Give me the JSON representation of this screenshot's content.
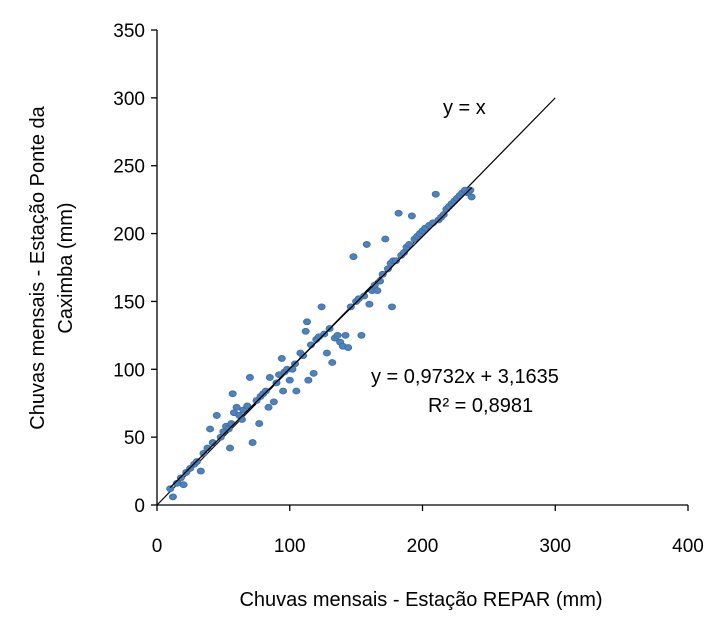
{
  "chart_data": {
    "type": "scatter",
    "title": "",
    "xlabel": "Chuvas mensais - Estação REPAR (mm)",
    "ylabel_line1": "Chuvas mensais - Estação Ponte da",
    "ylabel_line2": "Caximba (mm)",
    "xlim": [
      0,
      400
    ],
    "ylim": [
      0,
      350
    ],
    "x_ticks": [
      0,
      100,
      200,
      300,
      400
    ],
    "y_ticks": [
      0,
      50,
      100,
      150,
      200,
      250,
      300,
      350
    ],
    "x_tick_labels": [
      "0",
      "100",
      "200",
      "300",
      "400"
    ],
    "y_tick_labels": [
      "0",
      "50",
      "100",
      "150",
      "200",
      "250",
      "300",
      "350"
    ],
    "grid": false,
    "colors": {
      "points": "#4f81bd",
      "point_stroke": "#3a6ea5",
      "trendline": "#000000",
      "identity_line": "#000000",
      "axes": "#000000"
    },
    "identity_line": {
      "label": "y = x",
      "x": [
        0,
        300
      ],
      "y": [
        0,
        300
      ]
    },
    "trendline": {
      "equation": "y = 0,9732x + 3,1635",
      "r2": "R² = 0,8981",
      "slope": 0.9732,
      "intercept": 3.1635
    },
    "points": [
      [
        10,
        12
      ],
      [
        12,
        6
      ],
      [
        15,
        16
      ],
      [
        18,
        20
      ],
      [
        20,
        15
      ],
      [
        22,
        24
      ],
      [
        25,
        27
      ],
      [
        28,
        30
      ],
      [
        30,
        32
      ],
      [
        33,
        25
      ],
      [
        35,
        38
      ],
      [
        38,
        42
      ],
      [
        40,
        56
      ],
      [
        42,
        46
      ],
      [
        45,
        66
      ],
      [
        48,
        50
      ],
      [
        50,
        54
      ],
      [
        52,
        58
      ],
      [
        54,
        56
      ],
      [
        55,
        42
      ],
      [
        56,
        60
      ],
      [
        57,
        82
      ],
      [
        58,
        68
      ],
      [
        60,
        72
      ],
      [
        62,
        66
      ],
      [
        64,
        63
      ],
      [
        65,
        70
      ],
      [
        68,
        73
      ],
      [
        70,
        94
      ],
      [
        72,
        46
      ],
      [
        75,
        77
      ],
      [
        77,
        60
      ],
      [
        78,
        80
      ],
      [
        80,
        82
      ],
      [
        82,
        84
      ],
      [
        84,
        72
      ],
      [
        85,
        94
      ],
      [
        88,
        76
      ],
      [
        90,
        90
      ],
      [
        92,
        96
      ],
      [
        94,
        108
      ],
      [
        95,
        84
      ],
      [
        96,
        98
      ],
      [
        98,
        100
      ],
      [
        100,
        92
      ],
      [
        102,
        100
      ],
      [
        104,
        104
      ],
      [
        105,
        84
      ],
      [
        108,
        112
      ],
      [
        110,
        110
      ],
      [
        112,
        128
      ],
      [
        113,
        135
      ],
      [
        114,
        92
      ],
      [
        116,
        118
      ],
      [
        118,
        97
      ],
      [
        120,
        122
      ],
      [
        122,
        124
      ],
      [
        124,
        146
      ],
      [
        126,
        126
      ],
      [
        128,
        112
      ],
      [
        130,
        130
      ],
      [
        132,
        105
      ],
      [
        134,
        123
      ],
      [
        136,
        125
      ],
      [
        138,
        120
      ],
      [
        140,
        117
      ],
      [
        142,
        125
      ],
      [
        144,
        116
      ],
      [
        146,
        146
      ],
      [
        148,
        183
      ],
      [
        150,
        150
      ],
      [
        152,
        152
      ],
      [
        154,
        125
      ],
      [
        156,
        154
      ],
      [
        158,
        192
      ],
      [
        160,
        148
      ],
      [
        162,
        158
      ],
      [
        164,
        162
      ],
      [
        166,
        158
      ],
      [
        168,
        165
      ],
      [
        170,
        170
      ],
      [
        172,
        196
      ],
      [
        174,
        174
      ],
      [
        176,
        178
      ],
      [
        177,
        146
      ],
      [
        178,
        180
      ],
      [
        180,
        180
      ],
      [
        182,
        215
      ],
      [
        184,
        184
      ],
      [
        186,
        186
      ],
      [
        188,
        190
      ],
      [
        190,
        192
      ],
      [
        192,
        213
      ],
      [
        194,
        196
      ],
      [
        196,
        198
      ],
      [
        198,
        200
      ],
      [
        200,
        202
      ],
      [
        202,
        204
      ],
      [
        205,
        206
      ],
      [
        208,
        208
      ],
      [
        210,
        229
      ],
      [
        212,
        210
      ],
      [
        214,
        212
      ],
      [
        216,
        214
      ],
      [
        218,
        218
      ],
      [
        220,
        220
      ],
      [
        222,
        222
      ],
      [
        224,
        224
      ],
      [
        226,
        226
      ],
      [
        228,
        228
      ],
      [
        230,
        230
      ],
      [
        232,
        232
      ],
      [
        234,
        230
      ],
      [
        236,
        232
      ],
      [
        237,
        227
      ]
    ]
  }
}
